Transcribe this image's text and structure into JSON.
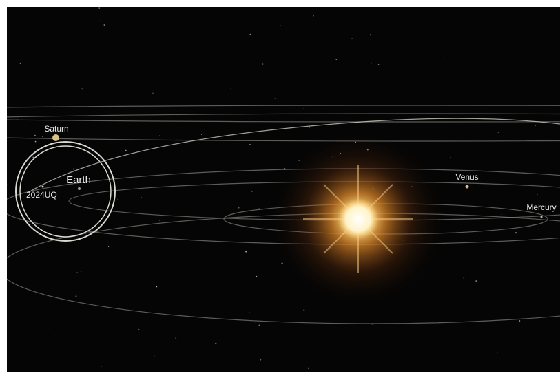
{
  "labels": {
    "saturn": "Saturn",
    "earth": "Earth",
    "asteroid": "2024UQ",
    "venus": "Venus",
    "mercury": "Mercury"
  }
}
